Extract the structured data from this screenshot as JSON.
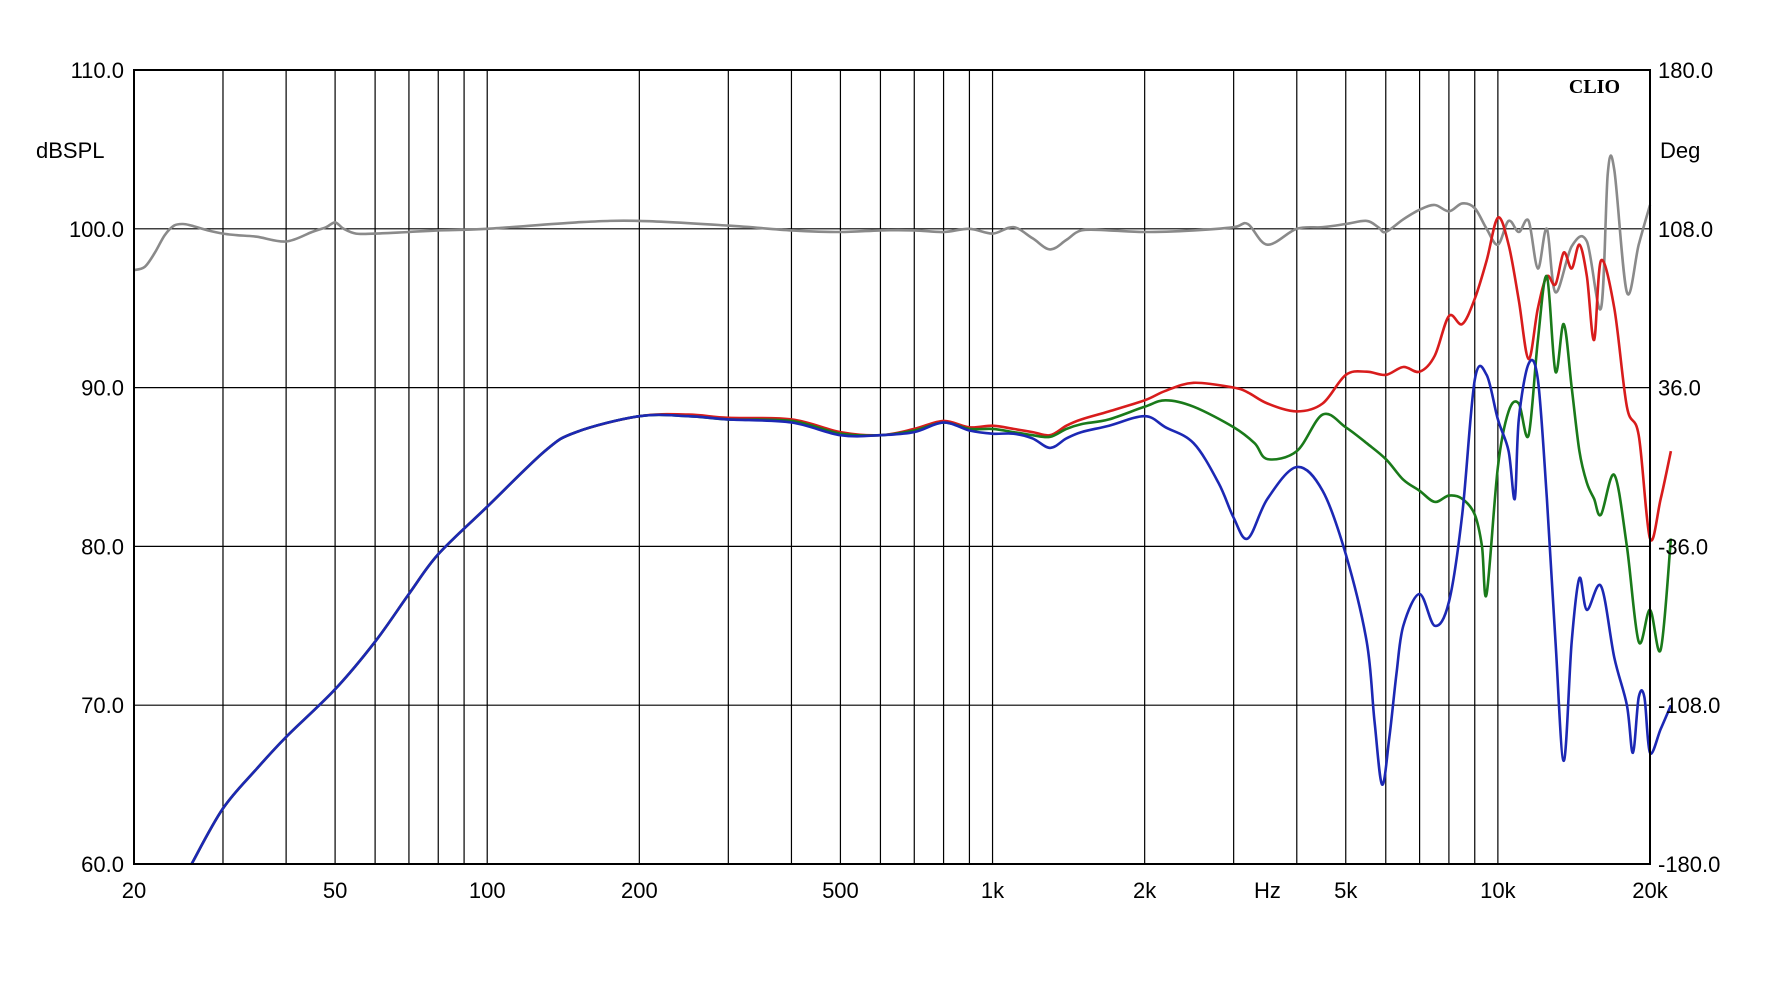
{
  "chart_data": {
    "type": "line",
    "brand": "CLIO",
    "x_axis": {
      "scale": "log",
      "range": [
        20,
        20000
      ],
      "ticks": [
        {
          "value": 20,
          "label": "20"
        },
        {
          "value": 50,
          "label": "50"
        },
        {
          "value": 100,
          "label": "100"
        },
        {
          "value": 200,
          "label": "200"
        },
        {
          "value": 500,
          "label": "500"
        },
        {
          "value": 1000,
          "label": "1k"
        },
        {
          "value": 2000,
          "label": "2k"
        },
        {
          "value": 5000,
          "label": "5k"
        },
        {
          "value": 10000,
          "label": "10k"
        },
        {
          "value": 20000,
          "label": "20k"
        }
      ],
      "unit_label": "Hz",
      "unit_label_value": 3500,
      "gridlines": [
        30,
        40,
        50,
        60,
        70,
        80,
        90,
        100,
        200,
        300,
        400,
        500,
        600,
        700,
        800,
        900,
        1000,
        2000,
        3000,
        4000,
        5000,
        6000,
        7000,
        8000,
        9000,
        10000
      ]
    },
    "y_axis_left": {
      "label": "dBSPL",
      "range": [
        60,
        110
      ],
      "ticks": [
        {
          "value": 110,
          "label": "110.0"
        },
        {
          "value": 100,
          "label": "100.0"
        },
        {
          "value": 90,
          "label": "90.0"
        },
        {
          "value": 80,
          "label": "80.0"
        },
        {
          "value": 70,
          "label": "70.0"
        },
        {
          "value": 60,
          "label": "60.0"
        }
      ]
    },
    "y_axis_right": {
      "label": "Deg",
      "range": [
        -180,
        180
      ],
      "ticks": [
        {
          "value": 180,
          "label": "180.0"
        },
        {
          "value": 108,
          "label": "108.0"
        },
        {
          "value": 36,
          "label": "36.0"
        },
        {
          "value": -36,
          "label": "-36.0"
        },
        {
          "value": -108,
          "label": "-108.0"
        },
        {
          "value": -180,
          "label": "-180.0"
        }
      ]
    },
    "grid": true,
    "series": [
      {
        "color": "#8a8a8a",
        "x": [
          20,
          21,
          22,
          23,
          24,
          25,
          26,
          28,
          30,
          32,
          35,
          40,
          45,
          48,
          50,
          52,
          55,
          60,
          70,
          80,
          100,
          150,
          200,
          300,
          400,
          500,
          600,
          700,
          800,
          900,
          1000,
          1100,
          1200,
          1300,
          1400,
          1500,
          1700,
          2000,
          2500,
          3000,
          3200,
          3500,
          4000,
          4500,
          5000,
          5500,
          5800,
          6000,
          6500,
          7000,
          7500,
          8000,
          8500,
          9000,
          9500,
          10000,
          10500,
          11000,
          11500,
          12000,
          12500,
          13000,
          14000,
          15000,
          16000,
          16500,
          17000,
          18000,
          19000,
          20000
        ],
        "y": [
          97.4,
          97.6,
          98.5,
          99.6,
          100.2,
          100.3,
          100.2,
          99.9,
          99.7,
          99.6,
          99.5,
          99.2,
          99.8,
          100.1,
          100.4,
          100.0,
          99.7,
          99.7,
          99.8,
          99.9,
          100.0,
          100.4,
          100.5,
          100.2,
          99.9,
          99.8,
          99.9,
          99.9,
          99.8,
          100.0,
          99.7,
          100.1,
          99.4,
          98.7,
          99.3,
          99.9,
          99.9,
          99.8,
          99.9,
          100.1,
          100.3,
          99.0,
          100.0,
          100.1,
          100.3,
          100.5,
          100.1,
          99.8,
          100.6,
          101.2,
          101.5,
          101.1,
          101.6,
          101.3,
          100.0,
          99.0,
          100.5,
          99.8,
          100.5,
          97.5,
          100.0,
          96.0,
          98.9,
          99.2,
          95.0,
          103.5,
          103.7,
          96.0,
          99.0,
          101.5
        ]
      },
      {
        "color": "#d81c1c",
        "x": [
          26,
          30,
          35,
          40,
          50,
          60,
          70,
          80,
          100,
          130,
          150,
          200,
          250,
          300,
          400,
          500,
          600,
          700,
          800,
          900,
          1000,
          1100,
          1200,
          1300,
          1400,
          1500,
          1700,
          2000,
          2200,
          2500,
          3000,
          3200,
          3500,
          4000,
          4500,
          5000,
          5500,
          6000,
          6500,
          7000,
          7500,
          8000,
          8500,
          9000,
          9500,
          10000,
          10500,
          11000,
          11500,
          12000,
          12500,
          13000,
          13500,
          14000,
          14500,
          15000,
          15500,
          16000,
          17000,
          18000,
          19000,
          20000,
          21000,
          22000
        ],
        "y": [
          60,
          63.5,
          66,
          68,
          71,
          74,
          77,
          79.5,
          82.5,
          86,
          87.2,
          88.2,
          88.3,
          88.1,
          88.0,
          87.2,
          87.0,
          87.4,
          87.9,
          87.5,
          87.6,
          87.4,
          87.2,
          87.0,
          87.6,
          88.0,
          88.5,
          89.2,
          89.8,
          90.3,
          90.0,
          89.7,
          89.0,
          88.5,
          89.0,
          90.8,
          91.0,
          90.8,
          91.3,
          91.0,
          92.0,
          94.5,
          94.0,
          95.6,
          98.0,
          100.7,
          99.0,
          95.5,
          91.8,
          95.0,
          97.0,
          96.5,
          98.5,
          97.5,
          99.0,
          97.0,
          93.0,
          98.0,
          95.0,
          88.8,
          87.0,
          80.5,
          83.0,
          86.0
        ]
      },
      {
        "color": "#1a7a1a",
        "x": [
          26,
          30,
          35,
          40,
          50,
          60,
          70,
          80,
          100,
          130,
          150,
          200,
          250,
          300,
          400,
          500,
          600,
          700,
          800,
          900,
          1000,
          1100,
          1200,
          1300,
          1400,
          1500,
          1700,
          2000,
          2200,
          2500,
          3000,
          3300,
          3500,
          4000,
          4500,
          5000,
          5500,
          6000,
          6500,
          7000,
          7500,
          8000,
          8500,
          9000,
          9300,
          9500,
          10000,
          10500,
          11000,
          11500,
          12000,
          12500,
          13000,
          13500,
          14000,
          14500,
          15000,
          15500,
          16000,
          17000,
          18000,
          19000,
          20000,
          21000,
          22000
        ],
        "y": [
          60,
          63.5,
          66,
          68,
          71,
          74,
          77,
          79.5,
          82.5,
          86,
          87.2,
          88.2,
          88.2,
          88.0,
          87.9,
          87.1,
          87.0,
          87.3,
          87.8,
          87.4,
          87.4,
          87.2,
          87.0,
          86.9,
          87.4,
          87.7,
          88.0,
          88.8,
          89.2,
          88.8,
          87.5,
          86.5,
          85.5,
          86.0,
          88.3,
          87.5,
          86.5,
          85.5,
          84.2,
          83.5,
          82.8,
          83.2,
          83.0,
          82.0,
          80.0,
          77.0,
          85.0,
          88.5,
          89.0,
          87.0,
          93.0,
          97.0,
          91.0,
          94.0,
          90.0,
          86.0,
          84.0,
          83.0,
          82.0,
          84.5,
          80.0,
          74.0,
          76.0,
          73.5,
          80.5
        ]
      },
      {
        "color": "#1c28b4",
        "x": [
          26,
          30,
          35,
          40,
          50,
          60,
          70,
          80,
          100,
          130,
          150,
          200,
          250,
          300,
          400,
          500,
          600,
          700,
          800,
          900,
          1000,
          1100,
          1200,
          1300,
          1400,
          1500,
          1700,
          2000,
          2200,
          2500,
          2800,
          3000,
          3200,
          3500,
          4000,
          4500,
          5000,
          5500,
          5700,
          5900,
          6100,
          6300,
          6500,
          7000,
          7500,
          8000,
          8500,
          9000,
          9500,
          10000,
          10500,
          10800,
          11000,
          11500,
          12000,
          12500,
          13000,
          13500,
          14000,
          14500,
          15000,
          16000,
          17000,
          18000,
          18500,
          19000,
          19500,
          20000,
          21000,
          22000
        ],
        "y": [
          60,
          63.5,
          66,
          68,
          71,
          74,
          77,
          79.5,
          82.5,
          86,
          87.2,
          88.2,
          88.2,
          88.0,
          87.8,
          87.0,
          87.0,
          87.2,
          87.8,
          87.3,
          87.1,
          87.1,
          86.8,
          86.2,
          86.8,
          87.2,
          87.6,
          88.2,
          87.5,
          86.5,
          84.0,
          81.8,
          80.5,
          83.0,
          85.0,
          83.5,
          79.5,
          74.0,
          69.0,
          65.0,
          68.0,
          72.0,
          75.0,
          77.0,
          75.0,
          76.5,
          82.0,
          90.5,
          90.8,
          88.0,
          86.0,
          83.0,
          88.0,
          91.5,
          90.5,
          83.0,
          74.0,
          66.5,
          74.0,
          78.0,
          76.0,
          77.5,
          73.0,
          70.0,
          67.0,
          70.5,
          70.5,
          67.0,
          68.5,
          70.0
        ]
      }
    ]
  }
}
